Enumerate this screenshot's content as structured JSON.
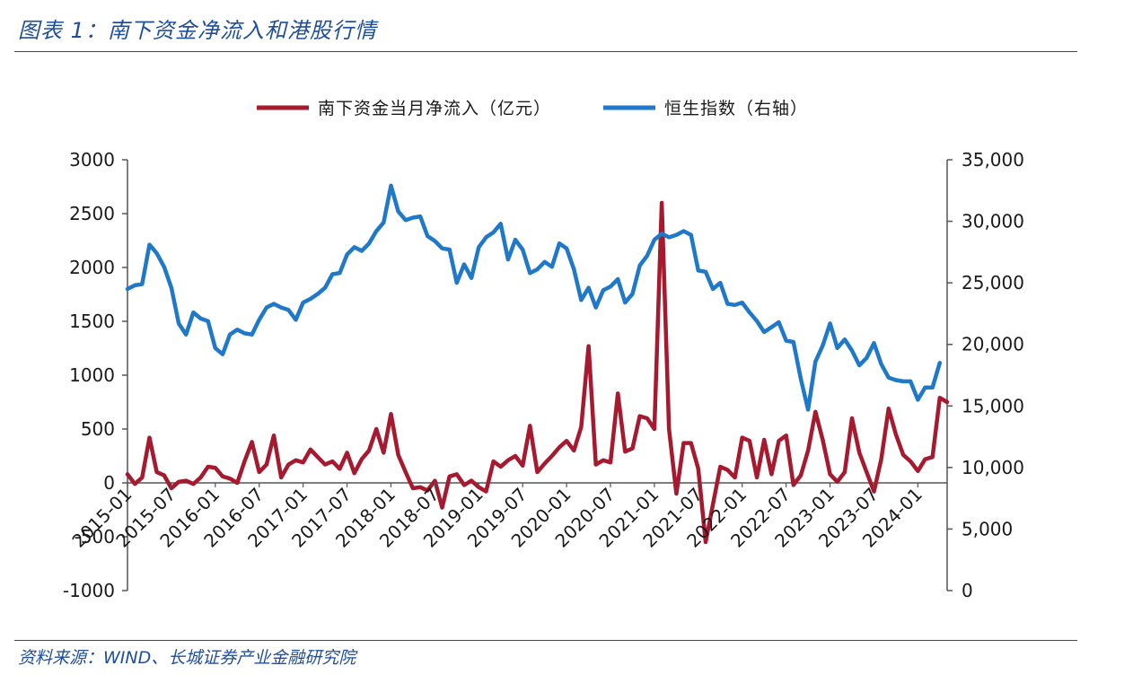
{
  "figure": {
    "title": "图表 1：南下资金净流入和港股行情",
    "source": "资料来源：WIND、长城证券产业金融研究院"
  },
  "chart_data": {
    "type": "line",
    "legend_position": "top-center",
    "grid": false,
    "left_axis": {
      "min": -1000,
      "max": 3000,
      "ticks": [
        -1000,
        -500,
        0,
        500,
        1000,
        1500,
        2000,
        2500,
        3000
      ],
      "tick_labels": [
        "-1000",
        "-500",
        "0",
        "500",
        "1000",
        "1500",
        "2000",
        "2500",
        "3000"
      ]
    },
    "right_axis": {
      "min": 0,
      "max": 35000,
      "ticks": [
        0,
        5000,
        10000,
        15000,
        20000,
        25000,
        30000,
        35000
      ],
      "tick_labels": [
        "0",
        "5,000",
        "10,000",
        "15,000",
        "20,000",
        "25,000",
        "30,000",
        "35,000"
      ]
    },
    "x_tick_labels": [
      "2015-01",
      "2015-07",
      "2016-01",
      "2016-07",
      "2017-01",
      "2017-07",
      "2018-01",
      "2018-07",
      "2019-01",
      "2019-07",
      "2020-01",
      "2020-07",
      "2021-01",
      "2021-07",
      "2022-01",
      "2022-07",
      "2023-01",
      "2023-07",
      "2024-01"
    ],
    "x_start": "2015-01",
    "series": [
      {
        "name": "南下资金当月净流入（亿元）",
        "axis": "left",
        "color": "#a6192e",
        "values": [
          80,
          -10,
          50,
          420,
          100,
          70,
          -50,
          10,
          20,
          -10,
          50,
          150,
          140,
          60,
          40,
          0,
          200,
          380,
          100,
          170,
          440,
          50,
          170,
          210,
          190,
          310,
          240,
          170,
          200,
          130,
          280,
          90,
          220,
          300,
          500,
          280,
          640,
          260,
          100,
          -50,
          -40,
          -70,
          20,
          -230,
          60,
          80,
          -20,
          20,
          -40,
          -80,
          200,
          150,
          210,
          250,
          160,
          530,
          100,
          180,
          250,
          330,
          390,
          300,
          520,
          1270,
          170,
          210,
          190,
          830,
          290,
          320,
          620,
          600,
          500,
          2600,
          500,
          -100,
          370,
          370,
          130,
          -550,
          -200,
          150,
          120,
          50,
          420,
          390,
          50,
          400,
          80,
          390,
          440,
          -20,
          70,
          300,
          660,
          400,
          80,
          10,
          100,
          600,
          280,
          100,
          -80,
          220,
          690,
          450,
          260,
          200,
          110,
          220,
          240,
          790,
          750
        ],
        "value_labels": []
      },
      {
        "name": "恒生指数（右轴）",
        "axis": "right",
        "color": "#1f78c8",
        "values": [
          24500,
          24800,
          24900,
          28100,
          27400,
          26300,
          24600,
          21700,
          20800,
          22600,
          22100,
          21900,
          19700,
          19200,
          20800,
          21200,
          20900,
          20800,
          22000,
          23000,
          23300,
          23000,
          22800,
          22000,
          23400,
          23700,
          24100,
          24600,
          25700,
          25800,
          27300,
          27900,
          27600,
          28200,
          29200,
          29900,
          32900,
          30800,
          30100,
          30300,
          30400,
          28800,
          28400,
          27800,
          27700,
          25000,
          26500,
          25400,
          27900,
          28700,
          29100,
          29800,
          26900,
          28500,
          27700,
          25800,
          26100,
          26700,
          26300,
          28200,
          27800,
          26100,
          23600,
          24600,
          23000,
          24400,
          24700,
          25300,
          23400,
          24100,
          26400,
          27200,
          28500,
          29000,
          28700,
          28900,
          29200,
          28900,
          26000,
          25900,
          24500,
          25000,
          23300,
          23200,
          23400,
          22600,
          21900,
          21000,
          21400,
          21800,
          20300,
          20200,
          17200,
          14700,
          18600,
          19900,
          21700,
          19700,
          20400,
          19500,
          18300,
          18900,
          20100,
          18400,
          17300,
          17100,
          17000,
          17000,
          15500,
          16500,
          16500,
          18500
        ],
        "value_labels": []
      }
    ]
  }
}
